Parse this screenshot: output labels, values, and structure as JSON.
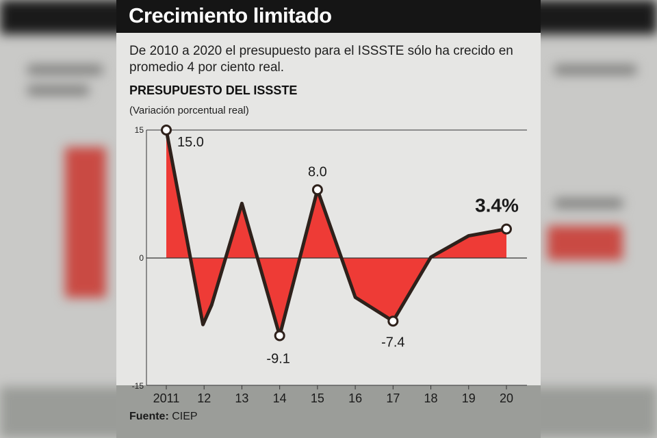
{
  "title": "Crecimiento limitado",
  "subtitle": "De 2010 a 2020 el presupuesto para el ISSSTE sólo ha crecido en promedio 4 por ciento real.",
  "chart_title": "PRESUPUESTO DEL ISSSTE",
  "chart_unit": "(Variación porcentual real)",
  "source_label": "Fuente:",
  "source_value": "CIEP",
  "colors": {
    "fill": "#ee3b36",
    "line": "#2e211b",
    "marker_fill": "#ffffff"
  },
  "chart_data": {
    "type": "area",
    "categories": [
      "2011",
      "12",
      "13",
      "14",
      "15",
      "16",
      "17",
      "18",
      "19",
      "20"
    ],
    "x": [
      2011,
      2011.97,
      2012.2,
      2013,
      2014,
      2015,
      2016,
      2017,
      2018,
      2019,
      2020
    ],
    "series": [
      {
        "values": [
          15.0,
          -7.8,
          -5.5,
          6.4,
          -9.1,
          8.0,
          -4.6,
          -7.4,
          0.1,
          2.6,
          3.4
        ]
      }
    ],
    "highlighted_points": [
      {
        "x": 2011,
        "y": 15.0,
        "label": "15.0"
      },
      {
        "x": 2014,
        "y": -9.1,
        "label": "-9.1"
      },
      {
        "x": 2015,
        "y": 8.0,
        "label": "8.0"
      },
      {
        "x": 2017,
        "y": -7.4,
        "label": "-7.4"
      },
      {
        "x": 2020,
        "y": 3.4,
        "label": "3.4%"
      }
    ],
    "yticks": [
      "15",
      "0",
      "-15"
    ],
    "ylim": [
      -15,
      15
    ],
    "xlim": [
      2010.5,
      2020.5
    ],
    "grid": false
  }
}
